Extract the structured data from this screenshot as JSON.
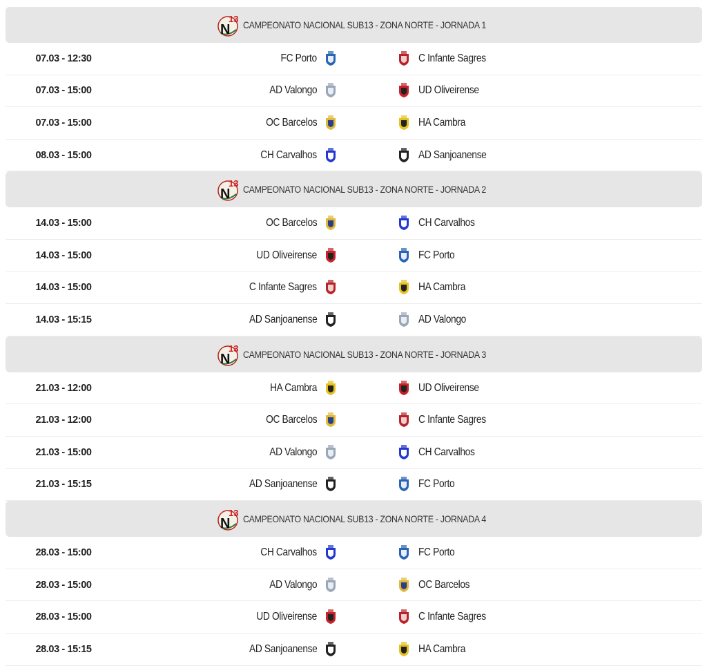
{
  "teams": {
    "FC Porto": {
      "primary": "#2a64b4",
      "secondary": "#e8eef8"
    },
    "C Infante Sagres": {
      "primary": "#b8232a",
      "secondary": "#f0d0d0"
    },
    "AD Valongo": {
      "primary": "#9aa7b8",
      "secondary": "#e8eef2"
    },
    "UD Oliveirense": {
      "primary": "#c8232a",
      "secondary": "#222222"
    },
    "OC Barcelos": {
      "primary": "#e0b93a",
      "secondary": "#2a3f8a"
    },
    "HA Cambra": {
      "primary": "#e6c21f",
      "secondary": "#222222"
    },
    "CH Carvalhos": {
      "primary": "#2438d0",
      "secondary": "#ffffff"
    },
    "AD Sanjoanense": {
      "primary": "#222222",
      "secondary": "#ffffff"
    }
  },
  "rounds": [
    {
      "title": "CAMPEONATO NACIONAL SUB13 - ZONA NORTE - JORNADA 1",
      "matches": [
        {
          "time": "07.03 - 12:30",
          "home": "FC Porto",
          "away": "C Infante Sagres"
        },
        {
          "time": "07.03 - 15:00",
          "home": "AD Valongo",
          "away": "UD Oliveirense"
        },
        {
          "time": "07.03 - 15:00",
          "home": "OC Barcelos",
          "away": "HA Cambra"
        },
        {
          "time": "08.03 - 15:00",
          "home": "CH Carvalhos",
          "away": "AD Sanjoanense"
        }
      ]
    },
    {
      "title": "CAMPEONATO NACIONAL SUB13 - ZONA NORTE - JORNADA 2",
      "matches": [
        {
          "time": "14.03 - 15:00",
          "home": "OC Barcelos",
          "away": "CH Carvalhos"
        },
        {
          "time": "14.03 - 15:00",
          "home": "UD Oliveirense",
          "away": "FC Porto"
        },
        {
          "time": "14.03 - 15:00",
          "home": "C Infante Sagres",
          "away": "HA Cambra"
        },
        {
          "time": "14.03 - 15:15",
          "home": "AD Sanjoanense",
          "away": "AD Valongo"
        }
      ]
    },
    {
      "title": "CAMPEONATO NACIONAL SUB13 - ZONA NORTE - JORNADA 3",
      "matches": [
        {
          "time": "21.03 - 12:00",
          "home": "HA Cambra",
          "away": "UD Oliveirense"
        },
        {
          "time": "21.03 - 12:00",
          "home": "OC Barcelos",
          "away": "C Infante Sagres"
        },
        {
          "time": "21.03 - 15:00",
          "home": "AD Valongo",
          "away": "CH Carvalhos"
        },
        {
          "time": "21.03 - 15:15",
          "home": "AD Sanjoanense",
          "away": "FC Porto"
        }
      ]
    },
    {
      "title": "CAMPEONATO NACIONAL SUB13 - ZONA NORTE - JORNADA 4",
      "matches": [
        {
          "time": "28.03 - 15:00",
          "home": "CH Carvalhos",
          "away": "FC Porto"
        },
        {
          "time": "28.03 - 15:00",
          "home": "AD Valongo",
          "away": "OC Barcelos"
        },
        {
          "time": "28.03 - 15:00",
          "home": "UD Oliveirense",
          "away": "C Infante Sagres"
        },
        {
          "time": "28.03 - 15:15",
          "home": "AD Sanjoanense",
          "away": "HA Cambra"
        }
      ]
    }
  ]
}
